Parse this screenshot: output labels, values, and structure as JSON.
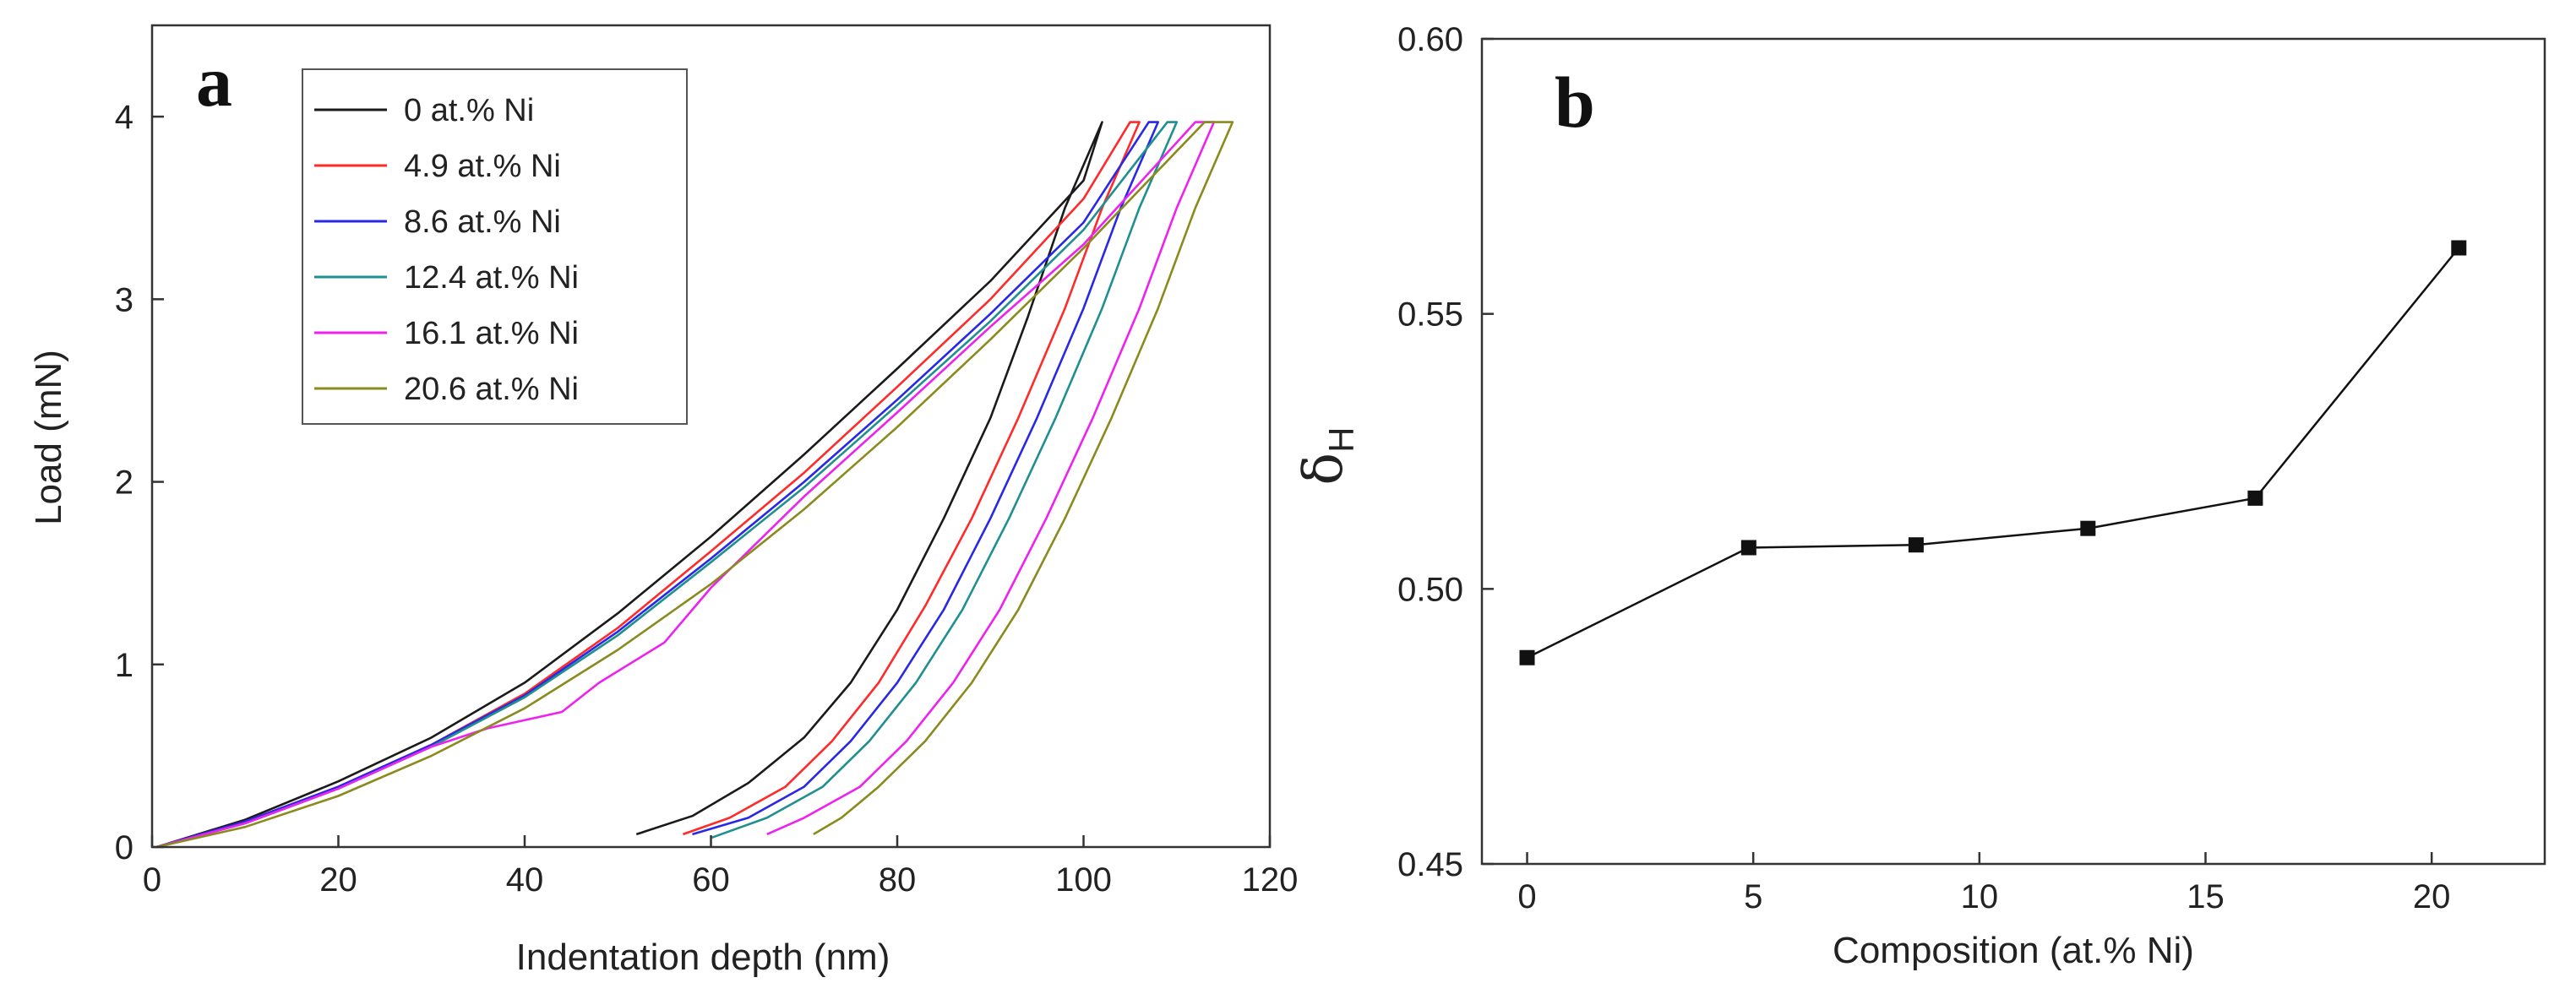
{
  "chart_data": [
    {
      "type": "line",
      "panel_label": "a",
      "xlabel": "Indentation depth (nm)",
      "ylabel": "Load (mN)",
      "xlim": [
        0,
        120
      ],
      "ylim": [
        0,
        4.5
      ],
      "xticks": [
        0,
        20,
        40,
        60,
        80,
        100,
        120
      ],
      "yticks": [
        0,
        1,
        2,
        3,
        4
      ],
      "legend_position": "top-left",
      "series": [
        {
          "name": "0 at.% Ni",
          "color": "#1a1a1a",
          "loading": [
            [
              0.5,
              0
            ],
            [
              10,
              0.15
            ],
            [
              20,
              0.36
            ],
            [
              30,
              0.6
            ],
            [
              40,
              0.9
            ],
            [
              50,
              1.28
            ],
            [
              60,
              1.7
            ],
            [
              70,
              2.15
            ],
            [
              80,
              2.62
            ],
            [
              90,
              3.1
            ],
            [
              100,
              3.65
            ],
            [
              102,
              3.97
            ]
          ],
          "unloading": [
            [
              102,
              3.97
            ],
            [
              98,
              3.5
            ],
            [
              94,
              2.9
            ],
            [
              90,
              2.35
            ],
            [
              85,
              1.8
            ],
            [
              80,
              1.3
            ],
            [
              75,
              0.9
            ],
            [
              70,
              0.6
            ],
            [
              64,
              0.35
            ],
            [
              58,
              0.17
            ],
            [
              52,
              0.07
            ]
          ]
        },
        {
          "name": "4.9 at.% Ni",
          "color": "#ff2a2a",
          "loading": [
            [
              0.5,
              0
            ],
            [
              10,
              0.14
            ],
            [
              20,
              0.33
            ],
            [
              30,
              0.56
            ],
            [
              40,
              0.84
            ],
            [
              50,
              1.2
            ],
            [
              60,
              1.62
            ],
            [
              70,
              2.05
            ],
            [
              80,
              2.52
            ],
            [
              90,
              3.0
            ],
            [
              100,
              3.55
            ],
            [
              105,
              3.97
            ]
          ],
          "unloading": [
            [
              106,
              3.97
            ],
            [
              102,
              3.5
            ],
            [
              98,
              2.95
            ],
            [
              93,
              2.35
            ],
            [
              88,
              1.8
            ],
            [
              83,
              1.32
            ],
            [
              78,
              0.9
            ],
            [
              73,
              0.58
            ],
            [
              68,
              0.33
            ],
            [
              62,
              0.16
            ],
            [
              57,
              0.07
            ]
          ]
        },
        {
          "name": "8.6 at.% Ni",
          "color": "#2828e6",
          "loading": [
            [
              0.5,
              0
            ],
            [
              10,
              0.14
            ],
            [
              20,
              0.33
            ],
            [
              30,
              0.56
            ],
            [
              40,
              0.83
            ],
            [
              50,
              1.18
            ],
            [
              60,
              1.58
            ],
            [
              70,
              2.0
            ],
            [
              80,
              2.45
            ],
            [
              90,
              2.92
            ],
            [
              100,
              3.42
            ],
            [
              107,
              3.97
            ]
          ],
          "unloading": [
            [
              108,
              3.97
            ],
            [
              104,
              3.5
            ],
            [
              100,
              2.95
            ],
            [
              95,
              2.35
            ],
            [
              90,
              1.8
            ],
            [
              85,
              1.3
            ],
            [
              80,
              0.9
            ],
            [
              75,
              0.58
            ],
            [
              70,
              0.33
            ],
            [
              64,
              0.16
            ],
            [
              58,
              0.07
            ]
          ]
        },
        {
          "name": "12.4 at.% Ni",
          "color": "#1f8f8f",
          "loading": [
            [
              0.5,
              0
            ],
            [
              10,
              0.13
            ],
            [
              20,
              0.32
            ],
            [
              30,
              0.55
            ],
            [
              40,
              0.82
            ],
            [
              50,
              1.16
            ],
            [
              60,
              1.56
            ],
            [
              70,
              1.97
            ],
            [
              80,
              2.42
            ],
            [
              90,
              2.88
            ],
            [
              100,
              3.38
            ],
            [
              109,
              3.97
            ]
          ],
          "unloading": [
            [
              110,
              3.97
            ],
            [
              106,
              3.5
            ],
            [
              102,
              2.95
            ],
            [
              97,
              2.35
            ],
            [
              92,
              1.8
            ],
            [
              87,
              1.3
            ],
            [
              82,
              0.9
            ],
            [
              77,
              0.58
            ],
            [
              72,
              0.33
            ],
            [
              66,
              0.16
            ],
            [
              60,
              0.05
            ]
          ]
        },
        {
          "name": "16.1 at.% Ni",
          "color": "#ee22ee",
          "loading": [
            [
              0.5,
              0
            ],
            [
              10,
              0.13
            ],
            [
              20,
              0.32
            ],
            [
              30,
              0.55
            ],
            [
              36,
              0.65
            ],
            [
              44,
              0.74
            ],
            [
              48,
              0.9
            ],
            [
              55,
              1.12
            ],
            [
              60,
              1.42
            ],
            [
              70,
              1.92
            ],
            [
              80,
              2.38
            ],
            [
              90,
              2.85
            ],
            [
              100,
              3.3
            ],
            [
              112,
              3.97
            ]
          ],
          "unloading": [
            [
              114,
              3.97
            ],
            [
              110,
              3.5
            ],
            [
              106,
              2.95
            ],
            [
              101,
              2.35
            ],
            [
              96,
              1.8
            ],
            [
              91,
              1.3
            ],
            [
              86,
              0.9
            ],
            [
              81,
              0.58
            ],
            [
              76,
              0.33
            ],
            [
              70,
              0.16
            ],
            [
              66,
              0.07
            ]
          ]
        },
        {
          "name": "20.6 at.% Ni",
          "color": "#8a8a1e",
          "loading": [
            [
              0.5,
              0
            ],
            [
              10,
              0.11
            ],
            [
              20,
              0.28
            ],
            [
              30,
              0.5
            ],
            [
              40,
              0.76
            ],
            [
              50,
              1.08
            ],
            [
              60,
              1.44
            ],
            [
              70,
              1.85
            ],
            [
              80,
              2.3
            ],
            [
              90,
              2.78
            ],
            [
              100,
              3.28
            ],
            [
              113,
              3.97
            ]
          ],
          "unloading": [
            [
              116,
              3.97
            ],
            [
              112,
              3.5
            ],
            [
              108,
              2.95
            ],
            [
              103,
              2.35
            ],
            [
              98,
              1.8
            ],
            [
              93,
              1.3
            ],
            [
              88,
              0.9
            ],
            [
              83,
              0.58
            ],
            [
              78,
              0.33
            ],
            [
              74,
              0.16
            ],
            [
              71,
              0.07
            ]
          ]
        }
      ]
    },
    {
      "type": "line",
      "panel_label": "b",
      "xlabel": "Composition (at.% Ni)",
      "ylabel": "δ",
      "ylabel_subscript": "H",
      "xlim": [
        -1,
        22.5
      ],
      "ylim": [
        0.45,
        0.6
      ],
      "xticks": [
        0,
        5,
        10,
        15,
        20
      ],
      "yticks": [
        0.45,
        0.5,
        0.55,
        0.6
      ],
      "ytick_labels": [
        "0.45",
        "0.50",
        "0.55",
        "0.60"
      ],
      "color": "#111111",
      "x": [
        0,
        4.9,
        8.6,
        12.4,
        16.1,
        20.6
      ],
      "y": [
        0.4875,
        0.5075,
        0.508,
        0.511,
        0.5165,
        0.562
      ]
    }
  ]
}
